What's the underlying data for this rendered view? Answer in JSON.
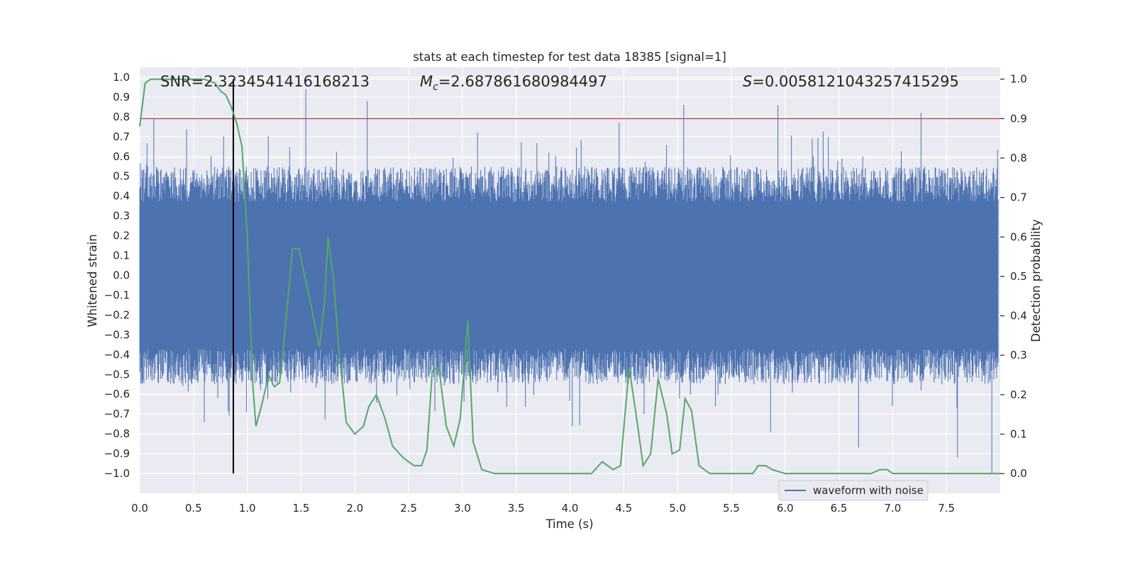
{
  "chart_data": {
    "type": "line",
    "title": "stats at each timestep for test data 18385 [signal=1]",
    "xlabel": "Time (s)",
    "ylabel_left": "Whitened strain",
    "ylabel_right": "Detection probability",
    "xlim": [
      0.0,
      8.0
    ],
    "ylim_left": [
      -1.1,
      1.05
    ],
    "ylim_right": [
      -0.05,
      1.03
    ],
    "x_ticks": [
      "0.0",
      "0.5",
      "1.0",
      "1.5",
      "2.0",
      "2.5",
      "3.0",
      "3.5",
      "4.0",
      "4.5",
      "5.0",
      "5.5",
      "6.0",
      "6.5",
      "7.0",
      "7.5"
    ],
    "x_tick_values": [
      0.0,
      0.5,
      1.0,
      1.5,
      2.0,
      2.5,
      3.0,
      3.5,
      4.0,
      4.5,
      5.0,
      5.5,
      6.0,
      6.5,
      7.0,
      7.5
    ],
    "y_left_ticks": [
      "1.0",
      "0.9",
      "0.8",
      "0.7",
      "0.6",
      "0.5",
      "0.4",
      "0.3",
      "0.2",
      "0.1",
      "0.0",
      "-0.1",
      "-0.2",
      "-0.3",
      "-0.4",
      "-0.5",
      "-0.6",
      "-0.7",
      "-0.8",
      "-0.9",
      "-1.0"
    ],
    "y_left_tick_values": [
      1.0,
      0.9,
      0.8,
      0.7,
      0.6,
      0.5,
      0.4,
      0.3,
      0.2,
      0.1,
      0.0,
      -0.1,
      -0.2,
      -0.3,
      -0.4,
      -0.5,
      -0.6,
      -0.7,
      -0.8,
      -0.9,
      -1.0
    ],
    "y_right_ticks": [
      "1.0",
      "0.9",
      "0.8",
      "0.7",
      "0.6",
      "0.5",
      "0.4",
      "0.3",
      "0.2",
      "0.1",
      "0.0"
    ],
    "y_right_tick_values": [
      1.0,
      0.9,
      0.8,
      0.7,
      0.6,
      0.5,
      0.4,
      0.3,
      0.2,
      0.1,
      0.0
    ],
    "annotations": {
      "snr": "SNR=2.3234541416168213",
      "mc_symbol": "M",
      "mc_sub": "c",
      "mc_value": "=2.687861680984497",
      "s_symbol": "S",
      "s_value": "=0.0058121043257415295"
    },
    "threshold": 0.9,
    "marker_time": 0.87,
    "waveform": {
      "name": "waveform with noise",
      "color": "#4c72b0",
      "envelope_upper_typical": 0.45,
      "envelope_lower_typical": -0.45,
      "notable_peaks": [
        [
          1.55,
          0.94
        ],
        [
          2.12,
          0.88
        ],
        [
          5.07,
          0.86
        ],
        [
          5.95,
          0.86
        ],
        [
          7.28,
          0.82
        ],
        [
          4.47,
          0.77
        ]
      ],
      "notable_troughs": [
        [
          7.94,
          -1.0
        ],
        [
          7.62,
          -0.92
        ],
        [
          6.7,
          -0.87
        ],
        [
          4.03,
          -0.76
        ],
        [
          5.88,
          -0.79
        ]
      ]
    },
    "detection_probability": {
      "color": "#55a868",
      "points": [
        [
          0.0,
          0.88
        ],
        [
          0.05,
          0.99
        ],
        [
          0.1,
          1.0
        ],
        [
          0.2,
          1.0
        ],
        [
          0.4,
          1.0
        ],
        [
          0.6,
          1.0
        ],
        [
          0.7,
          0.99
        ],
        [
          0.75,
          0.97
        ],
        [
          0.8,
          0.96
        ],
        [
          0.85,
          0.93
        ],
        [
          0.9,
          0.89
        ],
        [
          0.95,
          0.83
        ],
        [
          1.0,
          0.6
        ],
        [
          1.05,
          0.23
        ],
        [
          1.08,
          0.12
        ],
        [
          1.13,
          0.17
        ],
        [
          1.2,
          0.25
        ],
        [
          1.25,
          0.22
        ],
        [
          1.3,
          0.23
        ],
        [
          1.35,
          0.36
        ],
        [
          1.42,
          0.57
        ],
        [
          1.48,
          0.57
        ],
        [
          1.55,
          0.48
        ],
        [
          1.62,
          0.39
        ],
        [
          1.67,
          0.32
        ],
        [
          1.72,
          0.44
        ],
        [
          1.75,
          0.6
        ],
        [
          1.8,
          0.5
        ],
        [
          1.85,
          0.32
        ],
        [
          1.92,
          0.13
        ],
        [
          2.0,
          0.1
        ],
        [
          2.08,
          0.12
        ],
        [
          2.13,
          0.17
        ],
        [
          2.2,
          0.2
        ],
        [
          2.28,
          0.14
        ],
        [
          2.35,
          0.07
        ],
        [
          2.45,
          0.04
        ],
        [
          2.55,
          0.02
        ],
        [
          2.62,
          0.02
        ],
        [
          2.67,
          0.06
        ],
        [
          2.72,
          0.26
        ],
        [
          2.78,
          0.27
        ],
        [
          2.85,
          0.12
        ],
        [
          2.92,
          0.07
        ],
        [
          2.98,
          0.14
        ],
        [
          3.05,
          0.39
        ],
        [
          3.1,
          0.08
        ],
        [
          3.18,
          0.01
        ],
        [
          3.3,
          0.0
        ],
        [
          3.7,
          0.0
        ],
        [
          4.0,
          0.0
        ],
        [
          4.2,
          0.0
        ],
        [
          4.3,
          0.03
        ],
        [
          4.4,
          0.01
        ],
        [
          4.47,
          0.02
        ],
        [
          4.55,
          0.27
        ],
        [
          4.63,
          0.12
        ],
        [
          4.68,
          0.02
        ],
        [
          4.75,
          0.05
        ],
        [
          4.82,
          0.24
        ],
        [
          4.9,
          0.15
        ],
        [
          4.95,
          0.05
        ],
        [
          5.02,
          0.06
        ],
        [
          5.07,
          0.19
        ],
        [
          5.13,
          0.16
        ],
        [
          5.2,
          0.02
        ],
        [
          5.3,
          0.0
        ],
        [
          5.6,
          0.0
        ],
        [
          5.7,
          0.0
        ],
        [
          5.75,
          0.02
        ],
        [
          5.82,
          0.02
        ],
        [
          5.88,
          0.01
        ],
        [
          6.0,
          0.0
        ],
        [
          6.5,
          0.0
        ],
        [
          6.8,
          0.0
        ],
        [
          6.88,
          0.01
        ],
        [
          6.95,
          0.01
        ],
        [
          7.0,
          0.0
        ],
        [
          7.2,
          0.0
        ],
        [
          7.5,
          0.0
        ],
        [
          7.9,
          0.0
        ],
        [
          8.0,
          0.0
        ]
      ]
    },
    "threshold_color": "#c44e52",
    "marker_color": "#000000",
    "plot_background": "#eaeaf2",
    "grid_color": "#ffffff",
    "legend_position": "lower-right"
  }
}
